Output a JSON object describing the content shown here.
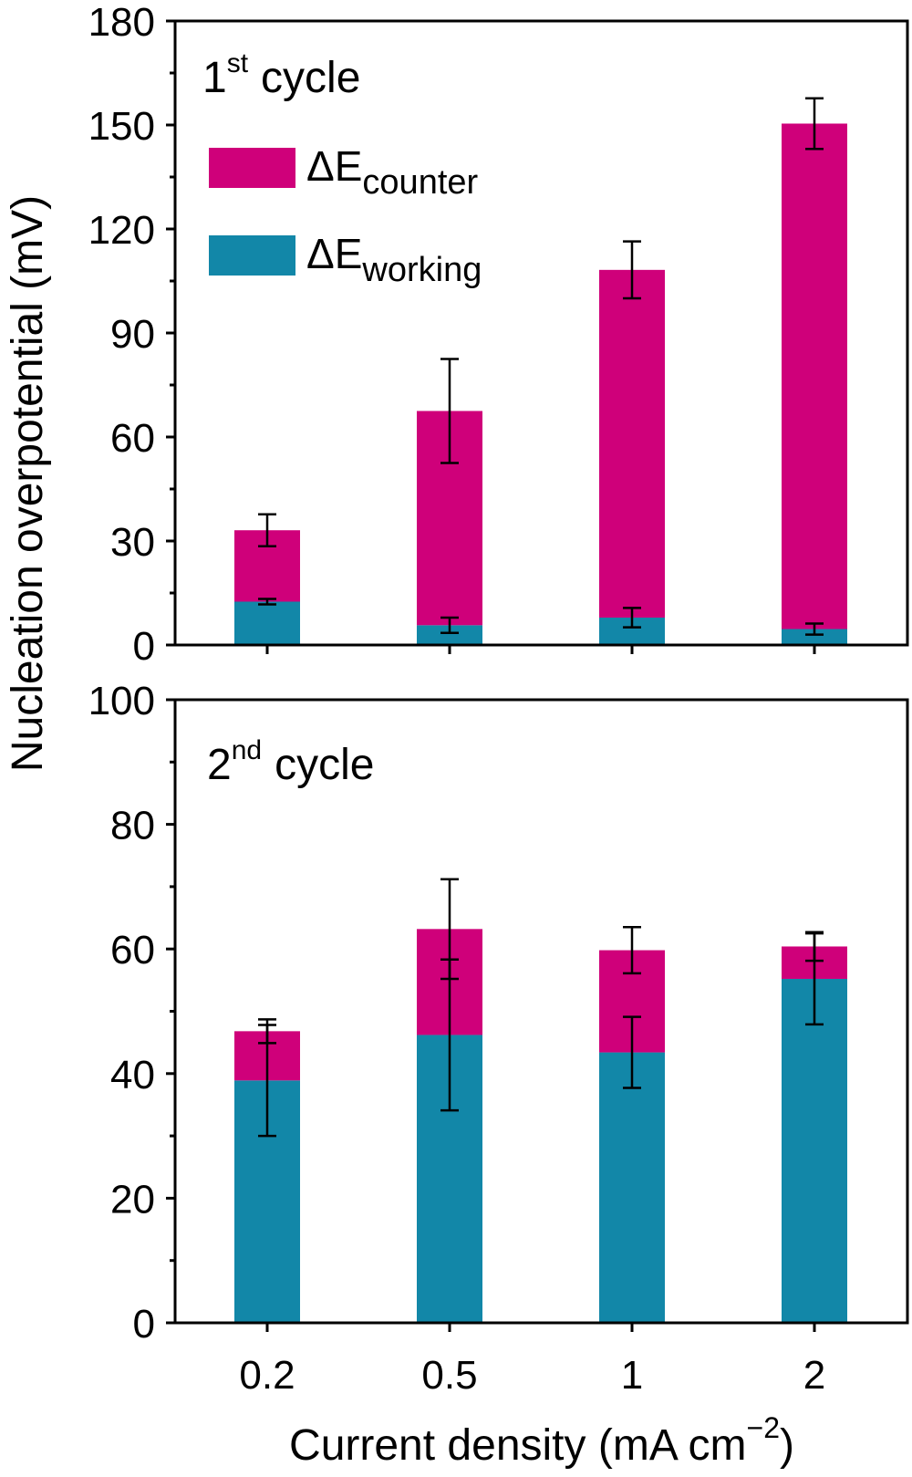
{
  "chart_data": [
    {
      "type": "bar",
      "stacked": true,
      "annotation": {
        "main": "1",
        "sup": "st",
        "rest": "cycle"
      },
      "categories": [
        "0.2",
        "0.5",
        "1",
        "2"
      ],
      "ylim": [
        0,
        180
      ],
      "yticks": [
        "0",
        "30",
        "60",
        "90",
        "120",
        "150",
        "180"
      ],
      "series": [
        {
          "name": "working",
          "legend_main": "ΔE",
          "legend_sub": "working",
          "color": "#1287a8",
          "values": [
            12.5,
            5.7,
            7.9,
            4.6
          ],
          "errors": [
            0.8,
            2.2,
            2.8,
            1.6
          ]
        },
        {
          "name": "counter",
          "legend_main": "ΔE",
          "legend_sub": "counter",
          "color": "#cf007a",
          "values": [
            20.6,
            61.8,
            100.3,
            145.8
          ],
          "totals": [
            33.1,
            67.5,
            108.2,
            150.4
          ],
          "errors": [
            4.6,
            15.0,
            8.2,
            7.3
          ]
        }
      ],
      "legend": "top-left"
    },
    {
      "type": "bar",
      "stacked": true,
      "annotation": {
        "main": "2",
        "sup": "nd",
        "rest": "cycle"
      },
      "categories": [
        "0.2",
        "0.5",
        "1",
        "2"
      ],
      "ylim": [
        0,
        100
      ],
      "yticks": [
        "0",
        "20",
        "40",
        "60",
        "80",
        "100"
      ],
      "series": [
        {
          "name": "working",
          "color": "#1287a8",
          "values": [
            38.9,
            46.2,
            43.4,
            55.2
          ],
          "errors": [
            8.9,
            12.1,
            5.7,
            7.3
          ]
        },
        {
          "name": "counter",
          "color": "#cf007a",
          "values": [
            7.9,
            17.0,
            16.4,
            5.2
          ],
          "totals": [
            46.8,
            63.2,
            59.8,
            60.4
          ],
          "errors": [
            1.9,
            8.0,
            3.7,
            2.3
          ]
        }
      ]
    }
  ],
  "axes": {
    "ylabel": "Nucleation overpotential (mV)",
    "xlabel": "Current density (mA cm",
    "xlabel_sup": "−2",
    "xlabel_end": ")"
  }
}
